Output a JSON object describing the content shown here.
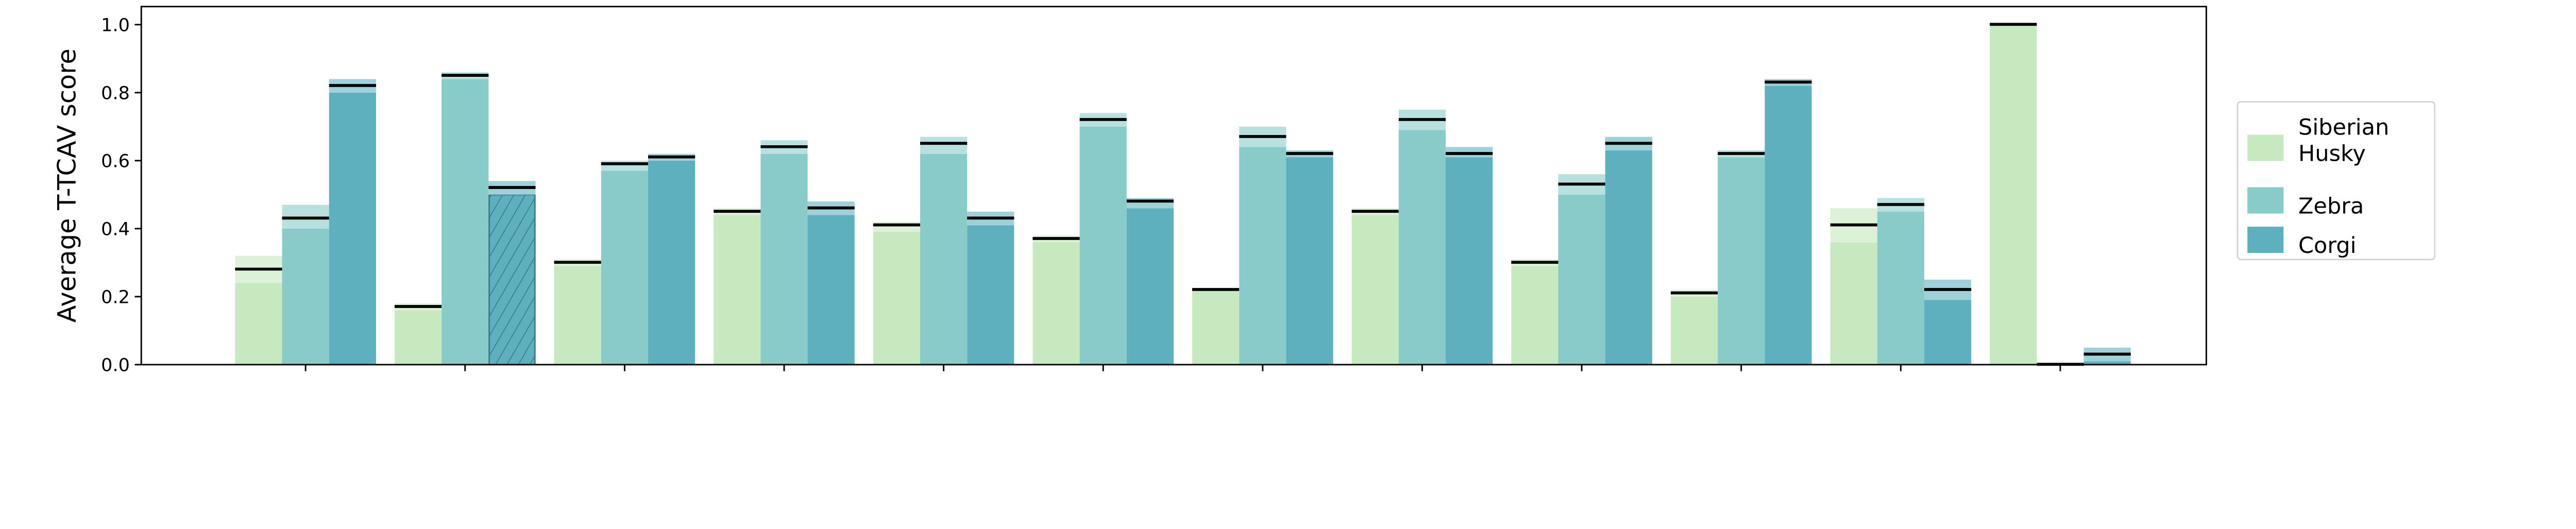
{
  "chart_data": {
    "type": "bar",
    "title": "",
    "xlabel": "",
    "ylabel": "Average T-TCAV score",
    "ylim": [
      0,
      1.05
    ],
    "yticks": [
      "0.0",
      "0.2",
      "0.4",
      "0.6",
      "0.8",
      "1.0"
    ],
    "grid": false,
    "legend_placement": "right-outside",
    "group_count": 12,
    "series": [
      {
        "name": "Siberian Husky",
        "legend_lines": [
          "Siberian",
          "Husky"
        ],
        "color": "#c7e9c0",
        "band_color": "#ddf1d8",
        "values": [
          0.28,
          0.17,
          0.3,
          0.45,
          0.41,
          0.37,
          0.22,
          0.45,
          0.3,
          0.21,
          0.41,
          1.0
        ],
        "low": [
          0.24,
          0.16,
          0.29,
          0.44,
          0.39,
          0.36,
          0.22,
          0.44,
          0.29,
          0.2,
          0.36,
          1.0
        ],
        "high": [
          0.32,
          0.18,
          0.31,
          0.46,
          0.42,
          0.38,
          0.22,
          0.46,
          0.31,
          0.22,
          0.46,
          1.0
        ]
      },
      {
        "name": "Zebra",
        "legend_lines": [
          "Zebra"
        ],
        "color": "#88cbc8",
        "band_color": "#b7e0de",
        "values": [
          0.43,
          0.85,
          0.59,
          0.64,
          0.65,
          0.72,
          0.67,
          0.72,
          0.53,
          0.62,
          0.47,
          0.0
        ],
        "low": [
          0.4,
          0.84,
          0.57,
          0.62,
          0.62,
          0.7,
          0.64,
          0.69,
          0.5,
          0.61,
          0.45,
          0.0
        ],
        "high": [
          0.47,
          0.86,
          0.6,
          0.66,
          0.67,
          0.74,
          0.7,
          0.75,
          0.56,
          0.63,
          0.49,
          0.0
        ]
      },
      {
        "name": "Corgi",
        "legend_lines": [
          "Corgi"
        ],
        "color": "#5fb0bf",
        "band_color": "#a0d1d9",
        "values": [
          0.82,
          0.52,
          0.61,
          0.46,
          0.43,
          0.48,
          0.62,
          0.62,
          0.65,
          0.83,
          0.22,
          0.03
        ],
        "low": [
          0.8,
          0.5,
          0.6,
          0.44,
          0.41,
          0.46,
          0.61,
          0.61,
          0.63,
          0.82,
          0.19,
          0.01
        ],
        "high": [
          0.84,
          0.54,
          0.62,
          0.48,
          0.45,
          0.49,
          0.63,
          0.64,
          0.67,
          0.84,
          0.25,
          0.05
        ]
      }
    ],
    "highlighted": {
      "series": 2,
      "group": 1,
      "style": "hatched"
    }
  }
}
